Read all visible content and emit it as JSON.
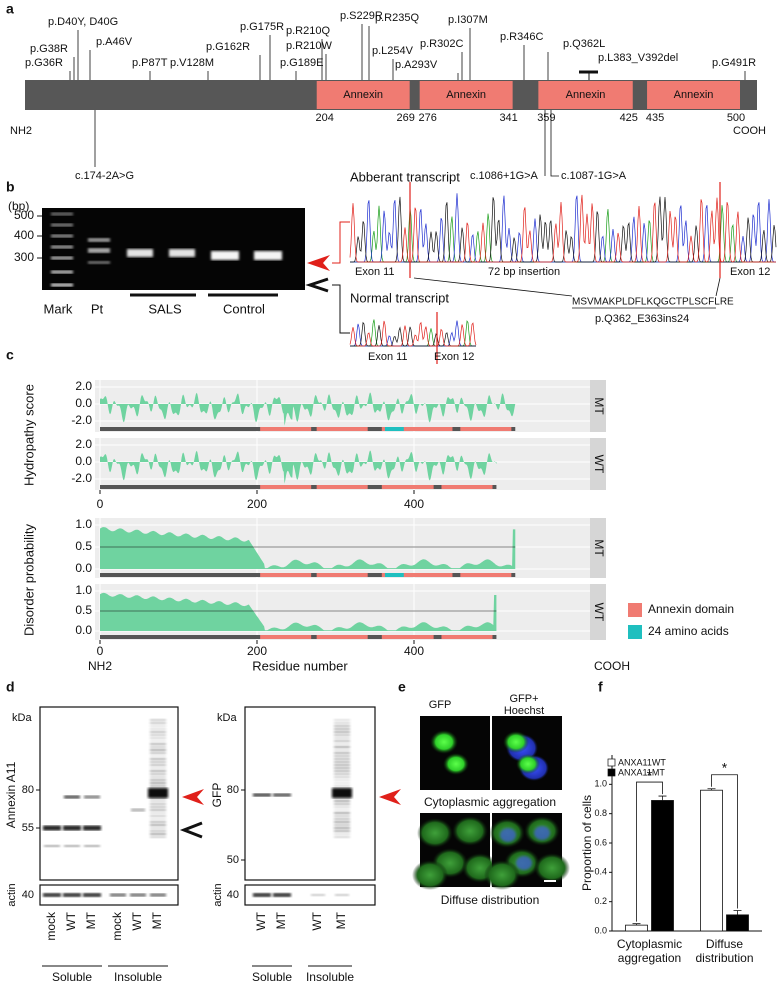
{
  "panels": {
    "a": {
      "label": "a",
      "bar_color": "#575757",
      "domain_color": "#f07b72",
      "domains": [
        {
          "name": "Annexin",
          "start": 204,
          "end": 269
        },
        {
          "name": "Annexin",
          "start": 276,
          "end": 341
        },
        {
          "name": "Annexin",
          "start": 359,
          "end": 425
        },
        {
          "name": "Annexin",
          "start": 435,
          "end": 500
        }
      ],
      "n_term": "NH2",
      "c_term": "COOH",
      "mutations": [
        "p.D40Y, D40G",
        "p.G38R",
        "p.G36R",
        "p.A46V",
        "p.P87T",
        "p.V128M",
        "p.G162R",
        "p.G175R",
        "p.G189E",
        "p.R210Q",
        "p.R210W",
        "p.S229R",
        "p.R235Q",
        "p.L254V",
        "p.A293V",
        "p.R302C",
        "p.I307M",
        "p.R346C",
        "p.Q362L",
        "p.L383_V392del",
        "p.G491R"
      ],
      "splice_variants": [
        {
          "label": "c.174-2A>G",
          "color": "#111111"
        },
        {
          "label": "c.1086+1G>A",
          "color": "#d02020"
        },
        {
          "label": "c.1087-1G>A",
          "color": "#111111"
        }
      ]
    },
    "b": {
      "label": "b",
      "unit": "(bp)",
      "ladder": [
        500,
        400,
        300
      ],
      "lanes": [
        "Mark",
        "Pt",
        "SALS",
        "Control"
      ],
      "aberrant": {
        "title": "Abberant transcript",
        "exon_left": "Exon 11",
        "insertion": "72 bp insertion",
        "exon_right": "Exon 12",
        "peptide": "MSVMAKPLDFLKQGCTPLSCFLRE",
        "protein_change": "p.Q362_E363ins24"
      },
      "normal": {
        "title": "Normal transcript",
        "exon_left": "Exon 11",
        "exon_right": "Exon 12"
      }
    },
    "c": {
      "label": "c",
      "hydropathy": {
        "ylabel": "Hydropathy score",
        "yticks": [
          "2.0",
          "0.0",
          "-2.0"
        ],
        "facets": [
          "MT",
          "WT"
        ]
      },
      "disorder": {
        "ylabel": "Disorder probability",
        "yticks": [
          "1.0",
          "0.5",
          "0.0"
        ],
        "facets": [
          "MT",
          "WT"
        ]
      },
      "xticks": [
        0,
        200,
        400
      ],
      "xlabel": "Residue number",
      "n_term": "NH2",
      "c_term": "COOH",
      "legend": [
        {
          "label": "Annexin domain",
          "color": "#f07b72"
        },
        {
          "label": "24 amino acids",
          "color": "#1fbfbf"
        }
      ]
    },
    "d": {
      "label": "d",
      "blots": [
        {
          "unit": "kDa",
          "markers": [
            80,
            55
          ],
          "actin_marker": 40,
          "ylabel": "Annexin A11",
          "actin": "actin",
          "lanes": [
            "mock",
            "WT",
            "MT",
            "mock",
            "WT",
            "MT"
          ],
          "groups": [
            "Soluble",
            "Insoluble"
          ]
        },
        {
          "unit": "kDa",
          "markers": [
            80,
            50
          ],
          "actin_marker": 40,
          "ylabel": "GFP",
          "actin": "actin",
          "lanes": [
            "WT",
            "MT",
            "WT",
            "MT"
          ],
          "groups": [
            "Soluble",
            "Insoluble"
          ]
        }
      ]
    },
    "e": {
      "label": "e",
      "columns": [
        "GFP",
        "GFP+ Hoechst"
      ],
      "rows": [
        "Cytoplasmic aggregation",
        "Diffuse distribution"
      ]
    },
    "f": {
      "label": "f"
    }
  },
  "chart_data": {
    "type": "bar",
    "ylabel": "Proportion of cells",
    "categories": [
      "Cytoplasmic aggregation",
      "Diffuse distribution"
    ],
    "series": [
      {
        "name": "ANXA11WT",
        "color": "#ffffff",
        "values": [
          0.04,
          0.96
        ],
        "errors": [
          0.01,
          0.01
        ]
      },
      {
        "name": "ANXA11MT",
        "color": "#000000",
        "values": [
          0.89,
          0.11
        ],
        "errors": [
          0.03,
          0.03
        ]
      }
    ],
    "annotations": [
      "*",
      "*"
    ],
    "ylim": [
      0,
      1.2
    ],
    "yticks": [
      {
        "value": 0,
        "label": "0.0"
      },
      0.2,
      0.4,
      0.6,
      0.8,
      {
        "value": 1,
        "label": "1.0"
      }
    ]
  }
}
